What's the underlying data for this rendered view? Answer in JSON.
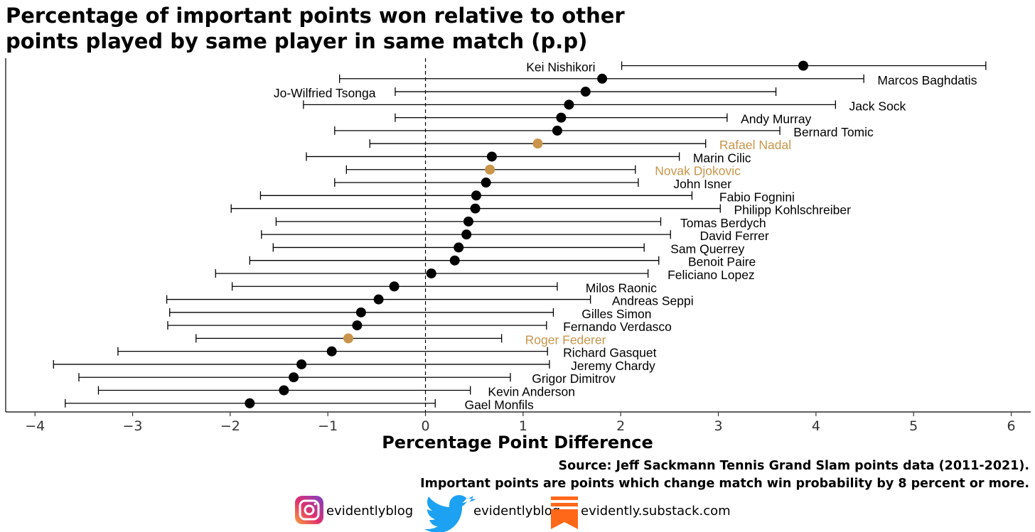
{
  "title_lines": [
    "Percentage of important points won relative to other",
    "points played by same player in same match (p.p)"
  ],
  "source_lines": [
    "Source: Jeff Sackmann Tennis Grand Slam points data (2011-2021).",
    "Important points are points which change match win probability by 8 percent or more."
  ],
  "social": {
    "instagram": {
      "icon": "instagram-icon",
      "handle": "evidentlyblog"
    },
    "twitter": {
      "icon": "twitter-bird-icon",
      "handle": "evidentlyblog"
    },
    "substack": {
      "icon": "substack-icon",
      "handle": "evidently.substack.com"
    }
  },
  "colors": {
    "default_point": "#000000",
    "highlight_point": "#c9954a",
    "highlight_label": "#c9954a"
  },
  "chart_data": {
    "type": "scatter",
    "title": "Percentage of important points won relative to other points played by same player in same match (p.p)",
    "xlabel": "Percentage Point Difference",
    "ylabel": "",
    "xlim": [
      -4.3,
      6.2
    ],
    "xticks": [
      -4,
      -3,
      -2,
      -1,
      0,
      1,
      2,
      3,
      4,
      5,
      6
    ],
    "reference_line_x": 0,
    "grid": false,
    "players": [
      {
        "name": "Kei Nishikori",
        "estimate": 3.87,
        "low": 2.01,
        "high": 5.74,
        "label_x": 1.74,
        "label_anchor": "end",
        "highlight": false
      },
      {
        "name": "Marcos Baghdatis",
        "estimate": 1.81,
        "low": -0.88,
        "high": 4.49,
        "label_x": 4.63,
        "label_anchor": "start",
        "highlight": false
      },
      {
        "name": "Jo-Wilfried Tsonga",
        "estimate": 1.64,
        "low": -0.31,
        "high": 3.59,
        "label_x": -0.51,
        "label_anchor": "end",
        "highlight": false
      },
      {
        "name": "Jack Sock",
        "estimate": 1.47,
        "low": -1.25,
        "high": 4.2,
        "label_x": 4.34,
        "label_anchor": "start",
        "highlight": false
      },
      {
        "name": "Andy Murray",
        "estimate": 1.39,
        "low": -0.31,
        "high": 3.09,
        "label_x": 3.23,
        "label_anchor": "start",
        "highlight": false
      },
      {
        "name": "Bernard Tomic",
        "estimate": 1.35,
        "low": -0.93,
        "high": 3.63,
        "label_x": 3.77,
        "label_anchor": "start",
        "highlight": false
      },
      {
        "name": "Rafael Nadal",
        "estimate": 1.15,
        "low": -0.57,
        "high": 2.87,
        "label_x": 3.01,
        "label_anchor": "start",
        "highlight": true
      },
      {
        "name": "Marin Cilic",
        "estimate": 0.68,
        "low": -1.22,
        "high": 2.6,
        "label_x": 2.74,
        "label_anchor": "start",
        "highlight": false
      },
      {
        "name": "Novak Djokovic",
        "estimate": 0.66,
        "low": -0.81,
        "high": 2.15,
        "label_x": 2.35,
        "label_anchor": "start",
        "highlight": true
      },
      {
        "name": "John Isner",
        "estimate": 0.62,
        "low": -0.93,
        "high": 2.18,
        "label_x": 2.54,
        "label_anchor": "start",
        "highlight": false
      },
      {
        "name": "Fabio Fognini",
        "estimate": 0.52,
        "low": -1.69,
        "high": 2.73,
        "label_x": 3.01,
        "label_anchor": "start",
        "highlight": false
      },
      {
        "name": "Philipp Kohlschreiber",
        "estimate": 0.51,
        "low": -1.99,
        "high": 3.02,
        "label_x": 3.16,
        "label_anchor": "start",
        "highlight": false
      },
      {
        "name": "Tomas Berdych",
        "estimate": 0.44,
        "low": -1.53,
        "high": 2.41,
        "label_x": 2.61,
        "label_anchor": "start",
        "highlight": false
      },
      {
        "name": "David Ferrer",
        "estimate": 0.42,
        "low": -1.68,
        "high": 2.51,
        "label_x": 2.81,
        "label_anchor": "start",
        "highlight": false
      },
      {
        "name": "Sam Querrey",
        "estimate": 0.34,
        "low": -1.56,
        "high": 2.24,
        "label_x": 2.51,
        "label_anchor": "start",
        "highlight": false
      },
      {
        "name": "Benoit Paire",
        "estimate": 0.3,
        "low": -1.8,
        "high": 2.39,
        "label_x": 2.69,
        "label_anchor": "start",
        "highlight": false
      },
      {
        "name": "Feliciano Lopez",
        "estimate": 0.06,
        "low": -2.15,
        "high": 2.28,
        "label_x": 2.48,
        "label_anchor": "start",
        "highlight": false
      },
      {
        "name": "Milos Raonic",
        "estimate": -0.32,
        "low": -1.98,
        "high": 1.35,
        "label_x": 1.64,
        "label_anchor": "start",
        "highlight": false
      },
      {
        "name": "Andreas Seppi",
        "estimate": -0.48,
        "low": -2.65,
        "high": 1.69,
        "label_x": 1.91,
        "label_anchor": "start",
        "highlight": false
      },
      {
        "name": "Gilles Simon",
        "estimate": -0.66,
        "low": -2.62,
        "high": 1.31,
        "label_x": 1.6,
        "label_anchor": "start",
        "highlight": false
      },
      {
        "name": "Fernando Verdasco",
        "estimate": -0.7,
        "low": -2.64,
        "high": 1.24,
        "label_x": 1.41,
        "label_anchor": "start",
        "highlight": false
      },
      {
        "name": "Roger Federer",
        "estimate": -0.79,
        "low": -2.35,
        "high": 0.78,
        "label_x": 1.02,
        "label_anchor": "start",
        "highlight": true
      },
      {
        "name": "Richard Gasquet",
        "estimate": -0.96,
        "low": -3.15,
        "high": 1.25,
        "label_x": 1.41,
        "label_anchor": "start",
        "highlight": false
      },
      {
        "name": "Jeremy Chardy",
        "estimate": -1.27,
        "low": -3.81,
        "high": 1.27,
        "label_x": 1.49,
        "label_anchor": "start",
        "highlight": false
      },
      {
        "name": "Grigor Dimitrov",
        "estimate": -1.35,
        "low": -3.55,
        "high": 0.87,
        "label_x": 1.09,
        "label_anchor": "start",
        "highlight": false
      },
      {
        "name": "Kevin Anderson",
        "estimate": -1.45,
        "low": -3.35,
        "high": 0.46,
        "label_x": 0.64,
        "label_anchor": "start",
        "highlight": false
      },
      {
        "name": "Gael Monfils",
        "estimate": -1.8,
        "low": -3.69,
        "high": 0.1,
        "label_x": 0.4,
        "label_anchor": "start",
        "highlight": false
      }
    ]
  }
}
